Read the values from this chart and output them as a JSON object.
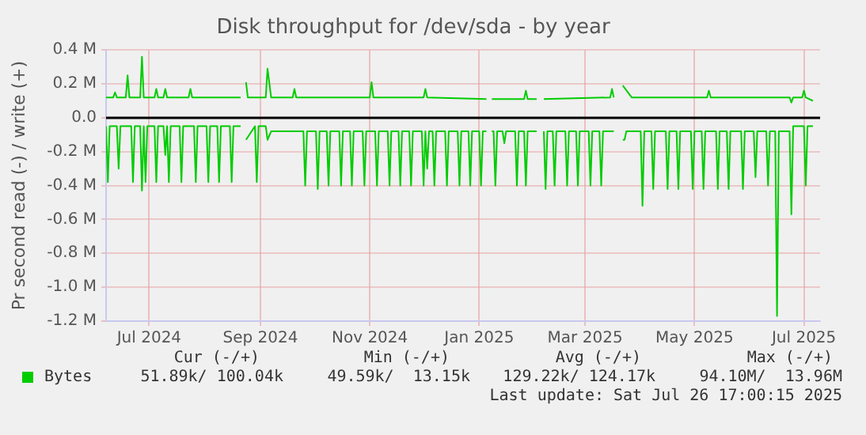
{
  "chart_data": {
    "type": "line",
    "title": "Disk throughput for /dev/sda - by year",
    "ylabel": "Pr second read (-) / write (+)",
    "xlim": [
      "2024-06-07",
      "2025-07-10"
    ],
    "xticks": [
      {
        "value": "2024-07-01",
        "label": "Jul 2024"
      },
      {
        "value": "2024-09-01",
        "label": "Sep 2024"
      },
      {
        "value": "2024-11-01",
        "label": "Nov 2024"
      },
      {
        "value": "2025-01-01",
        "label": "Jan 2025"
      },
      {
        "value": "2025-03-01",
        "label": "Mar 2025"
      },
      {
        "value": "2025-05-01",
        "label": "May 2025"
      },
      {
        "value": "2025-07-01",
        "label": "Jul 2025"
      }
    ],
    "ylim": [
      -1.2,
      0.4
    ],
    "yticks": [
      {
        "value": -1.2,
        "label": "-1.2 M"
      },
      {
        "value": -1,
        "label": "-1.0 M"
      },
      {
        "value": -0.8,
        "label": "-0.8 M"
      },
      {
        "value": -0.6,
        "label": "-0.6 M"
      },
      {
        "value": -0.4,
        "label": "-0.4 M"
      },
      {
        "value": -0.2,
        "label": "-0.2 M"
      },
      {
        "value": 0,
        "label": "0.0"
      },
      {
        "value": 0.2,
        "label": "0.2 M"
      },
      {
        "value": 0.4,
        "label": "0.4 M"
      }
    ],
    "grid": true,
    "legend": "bottom left",
    "marker": "none",
    "line_style": "solid",
    "ref_lines": [
      {
        "axis": "y",
        "value": 0,
        "color": "#000000"
      }
    ],
    "series": [
      {
        "name": "Bytes",
        "color": "#00cc00",
        "x": [
          "2024-06-07",
          "2024-06-11",
          "2024-06-12",
          "2024-06-13",
          "2024-06-18",
          "2024-06-19",
          "2024-06-20",
          "2024-06-26",
          "2024-06-27",
          "2024-06-28",
          "2024-07-04",
          "2024-07-05",
          "2024-07-06",
          "2024-07-09",
          "2024-07-10",
          "2024-07-11",
          "2024-07-23",
          "2024-07-24",
          "2024-07-25",
          "2024-08-21",
          "2024-08-22",
          "2024-08-24",
          "2024-08-25",
          "2024-09-04",
          "2024-09-05",
          "2024-09-07",
          "2024-09-19",
          "2024-09-20",
          "2024-09-21",
          "2024-11-01",
          "2024-11-02",
          "2024-11-03",
          "2024-12-01",
          "2024-12-02",
          "2024-12-03",
          "2025-01-05",
          "2025-01-06",
          "2025-01-08",
          "2025-01-26",
          "2025-01-27",
          "2025-01-28",
          "2025-02-02",
          "2025-02-04",
          "2025-02-06",
          "2025-03-15",
          "2025-03-16",
          "2025-03-17",
          "2025-03-19",
          "2025-03-22",
          "2025-03-27",
          "2025-05-08",
          "2025-05-09",
          "2025-05-10",
          "2025-06-23",
          "2025-06-24",
          "2025-06-25",
          "2025-06-30",
          "2025-07-01",
          "2025-07-02",
          "2025-07-06"
        ],
        "values": [
          0.12,
          0.12,
          0.15,
          0.12,
          0.12,
          0.25,
          0.12,
          0.12,
          0.36,
          0.12,
          0.12,
          0.17,
          0.12,
          0.12,
          0.17,
          0.12,
          0.12,
          0.17,
          0.12,
          0.12,
          null,
          0.21,
          0.12,
          0.12,
          0.29,
          0.12,
          0.12,
          0.17,
          0.12,
          0.12,
          0.21,
          0.12,
          0.12,
          0.17,
          0.12,
          0.11,
          null,
          0.11,
          0.11,
          0.16,
          0.11,
          0.11,
          null,
          0.11,
          0.12,
          0.17,
          0.12,
          null,
          0.19,
          0.12,
          0.12,
          0.16,
          0.12,
          0.12,
          0.09,
          0.12,
          0.12,
          0.16,
          0.12,
          0.1
        ]
      },
      {
        "color": "#00cc00",
        "x": [
          "2024-06-07",
          "2024-06-08",
          "2024-06-09",
          "2024-06-13",
          "2024-06-14",
          "2024-06-15",
          "2024-06-21",
          "2024-06-22",
          "2024-06-23",
          "2024-06-26",
          "2024-06-27",
          "2024-06-28",
          "2024-06-29",
          "2024-06-30",
          "2024-07-04",
          "2024-07-05",
          "2024-07-06",
          "2024-07-09",
          "2024-07-10",
          "2024-07-11",
          "2024-07-12",
          "2024-07-13",
          "2024-07-18",
          "2024-07-19",
          "2024-07-20",
          "2024-07-26",
          "2024-07-27",
          "2024-07-28",
          "2024-08-02",
          "2024-08-03",
          "2024-08-04",
          "2024-08-08",
          "2024-08-09",
          "2024-08-10",
          "2024-08-15",
          "2024-08-16",
          "2024-08-17",
          "2024-08-21",
          "2024-08-22",
          "2024-08-24",
          "2024-08-29",
          "2024-08-30",
          "2024-08-31",
          "2024-09-04",
          "2024-09-05",
          "2024-09-07",
          "2024-09-25",
          "2024-09-26",
          "2024-09-27",
          "2024-10-02",
          "2024-10-03",
          "2024-10-04",
          "2024-10-08",
          "2024-10-09",
          "2024-10-10",
          "2024-10-15",
          "2024-10-16",
          "2024-10-17",
          "2024-10-21",
          "2024-10-22",
          "2024-10-23",
          "2024-10-28",
          "2024-10-29",
          "2024-10-30",
          "2024-11-04",
          "2024-11-05",
          "2024-11-06",
          "2024-11-11",
          "2024-11-12",
          "2024-11-13",
          "2024-11-17",
          "2024-11-18",
          "2024-11-19",
          "2024-11-23",
          "2024-11-24",
          "2024-11-25",
          "2024-11-30",
          "2024-12-01",
          "2024-12-02",
          "2024-12-03",
          "2024-12-04",
          "2024-12-06",
          "2024-12-07",
          "2024-12-08",
          "2024-12-13",
          "2024-12-14",
          "2024-12-15",
          "2024-12-20",
          "2024-12-21",
          "2024-12-22",
          "2024-12-26",
          "2024-12-27",
          "2024-12-28",
          "2025-01-01",
          "2025-01-02",
          "2025-01-03",
          "2025-01-05",
          "2025-01-06",
          "2025-01-08",
          "2025-01-09",
          "2025-01-10",
          "2025-01-11",
          "2025-01-14",
          "2025-01-15",
          "2025-01-16",
          "2025-01-21",
          "2025-01-22",
          "2025-01-23",
          "2025-01-26",
          "2025-01-27",
          "2025-01-28",
          "2025-02-02",
          "2025-02-04",
          "2025-02-06",
          "2025-02-07",
          "2025-02-08",
          "2025-02-11",
          "2025-02-12",
          "2025-02-13",
          "2025-02-18",
          "2025-02-19",
          "2025-02-20",
          "2025-02-24",
          "2025-02-25",
          "2025-02-26",
          "2025-03-03",
          "2025-03-04",
          "2025-03-05",
          "2025-03-09",
          "2025-03-10",
          "2025-03-11",
          "2025-03-17",
          "2025-03-19",
          "2025-03-22",
          "2025-03-23",
          "2025-03-24",
          "2025-04-01",
          "2025-04-02",
          "2025-04-03",
          "2025-04-07",
          "2025-04-08",
          "2025-04-09",
          "2025-04-15",
          "2025-04-16",
          "2025-04-17",
          "2025-04-21",
          "2025-04-22",
          "2025-04-23",
          "2025-04-29",
          "2025-04-30",
          "2025-05-01",
          "2025-05-05",
          "2025-05-06",
          "2025-05-07",
          "2025-05-13",
          "2025-05-14",
          "2025-05-15",
          "2025-05-19",
          "2025-05-20",
          "2025-05-21",
          "2025-05-27",
          "2025-05-28",
          "2025-05-29",
          "2025-06-03",
          "2025-06-04",
          "2025-06-05",
          "2025-06-10",
          "2025-06-11",
          "2025-06-12",
          "2025-06-15",
          "2025-06-16",
          "2025-06-17",
          "2025-06-23",
          "2025-06-24",
          "2025-06-25",
          "2025-07-01",
          "2025-07-02",
          "2025-07-03",
          "2025-07-06"
        ],
        "values": [
          -0.05,
          -0.38,
          -0.05,
          -0.05,
          -0.3,
          -0.05,
          -0.05,
          -0.38,
          -0.05,
          -0.05,
          -0.43,
          -0.05,
          -0.38,
          -0.05,
          -0.05,
          -0.38,
          -0.05,
          -0.05,
          -0.22,
          -0.05,
          -0.38,
          -0.05,
          -0.05,
          -0.38,
          -0.05,
          -0.05,
          -0.38,
          -0.05,
          -0.05,
          -0.38,
          -0.05,
          -0.05,
          -0.38,
          -0.05,
          -0.05,
          -0.38,
          -0.05,
          -0.05,
          null,
          -0.13,
          -0.05,
          -0.38,
          -0.05,
          -0.05,
          -0.13,
          -0.08,
          -0.08,
          -0.4,
          -0.08,
          -0.08,
          -0.42,
          -0.08,
          -0.08,
          -0.4,
          -0.08,
          -0.08,
          -0.4,
          -0.08,
          -0.08,
          -0.4,
          -0.08,
          -0.08,
          -0.4,
          -0.08,
          -0.08,
          -0.4,
          -0.08,
          -0.08,
          -0.4,
          -0.08,
          -0.08,
          -0.4,
          -0.08,
          -0.08,
          -0.4,
          -0.08,
          -0.08,
          -0.4,
          -0.08,
          -0.3,
          -0.08,
          -0.08,
          -0.4,
          -0.08,
          -0.08,
          -0.4,
          -0.08,
          -0.08,
          -0.4,
          -0.08,
          -0.08,
          -0.4,
          -0.08,
          -0.08,
          -0.4,
          -0.08,
          -0.08,
          null,
          -0.08,
          -0.08,
          -0.4,
          -0.08,
          -0.08,
          -0.15,
          -0.08,
          -0.08,
          -0.4,
          -0.08,
          -0.08,
          -0.4,
          -0.08,
          -0.08,
          null,
          -0.08,
          -0.42,
          -0.08,
          -0.08,
          -0.4,
          -0.08,
          -0.08,
          -0.4,
          -0.08,
          -0.08,
          -0.4,
          -0.08,
          -0.08,
          -0.4,
          -0.08,
          -0.08,
          -0.4,
          -0.08,
          -0.08,
          null,
          -0.13,
          -0.13,
          -0.08,
          -0.08,
          -0.52,
          -0.08,
          -0.08,
          -0.42,
          -0.08,
          -0.08,
          -0.42,
          -0.08,
          -0.08,
          -0.42,
          -0.08,
          -0.08,
          -0.42,
          -0.08,
          -0.08,
          -0.42,
          -0.08,
          -0.08,
          -0.42,
          -0.08,
          -0.08,
          -0.42,
          -0.08,
          -0.08,
          -0.42,
          -0.08,
          -0.08,
          -0.35,
          -0.08,
          -0.08,
          -0.4,
          -0.08,
          -0.08,
          -1.17,
          -0.08,
          -0.08,
          -0.57,
          -0.05,
          -0.05,
          -0.4,
          -0.05,
          -0.05
        ]
      }
    ],
    "annotations": [
      "Cur (-/+)",
      "Min (-/+)",
      "Avg (-/+)",
      "Max (-/+)",
      "51.89k/ 100.04k",
      "49.59k/  13.15k",
      "129.22k/ 124.17k",
      "94.10M/  13.96M",
      "Last update: Sat Jul 26 17:00:15 2025"
    ]
  }
}
